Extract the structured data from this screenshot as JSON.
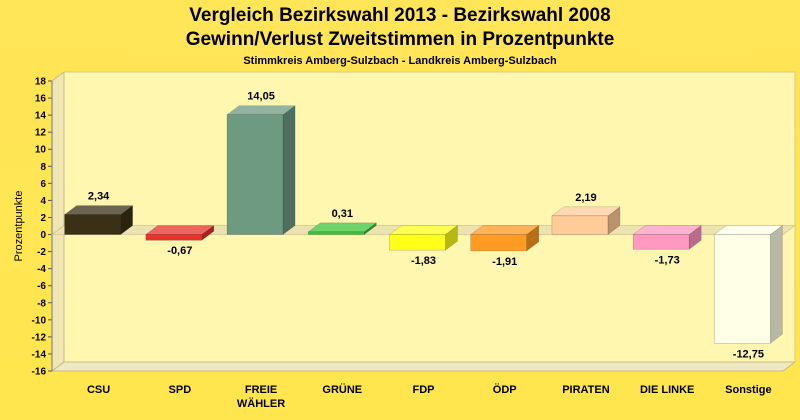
{
  "chart_data": {
    "type": "bar",
    "title": "Vergleich Bezirkswahl 2013 - Bezirkswahl 2008",
    "subtitle": "Gewinn/Verlust Zweitstimmen in Prozentpunkte",
    "subsubtitle": "Stimmkreis Amberg-Sulzbach - Landkreis Amberg-Sulzbach",
    "ylabel": "Prozentpunkte",
    "xlabel": "",
    "ylim": [
      -16,
      18
    ],
    "yticks": [
      18,
      16,
      14,
      12,
      10,
      8,
      6,
      4,
      2,
      0,
      -2,
      -4,
      -6,
      -8,
      -10,
      -12,
      -14,
      -16
    ],
    "ytick_labels": [
      "18",
      "16",
      "14",
      "12",
      "10",
      "8",
      "6",
      "4",
      "2",
      "0",
      "-2",
      "-4",
      "-6",
      "-8",
      "-10",
      "-12",
      "-14",
      "-16"
    ],
    "categories": [
      "CSU",
      "SPD",
      "FREIE WÄHLER",
      "GRÜNE",
      "FDP",
      "ÖDP",
      "PIRATEN",
      "DIE LINKE",
      "Sonstige"
    ],
    "category_lines": [
      [
        "CSU"
      ],
      [
        "SPD"
      ],
      [
        "FREIE",
        "WÄHLER"
      ],
      [
        "GRÜNE"
      ],
      [
        "FDP"
      ],
      [
        "ÖDP"
      ],
      [
        "PIRATEN"
      ],
      [
        "DIE LINKE"
      ],
      [
        "Sonstige"
      ]
    ],
    "values": [
      2.34,
      -0.67,
      14.05,
      0.31,
      -1.83,
      -1.91,
      2.19,
      -1.73,
      -12.75
    ],
    "data_labels": [
      "2,34",
      "-0,67",
      "14,05",
      "0,31",
      "-1,83",
      "-1,91",
      "2,19",
      "-1,73",
      "-12,75"
    ],
    "colors": [
      "#3A3015",
      "#E8322A",
      "#6E9A82",
      "#3FC43A",
      "#FFFF1A",
      "#FF9A22",
      "#FFCC99",
      "#FF99C0",
      "#FFFFE8"
    ],
    "grid": false,
    "legend": "none",
    "background": "#FFE64E"
  }
}
